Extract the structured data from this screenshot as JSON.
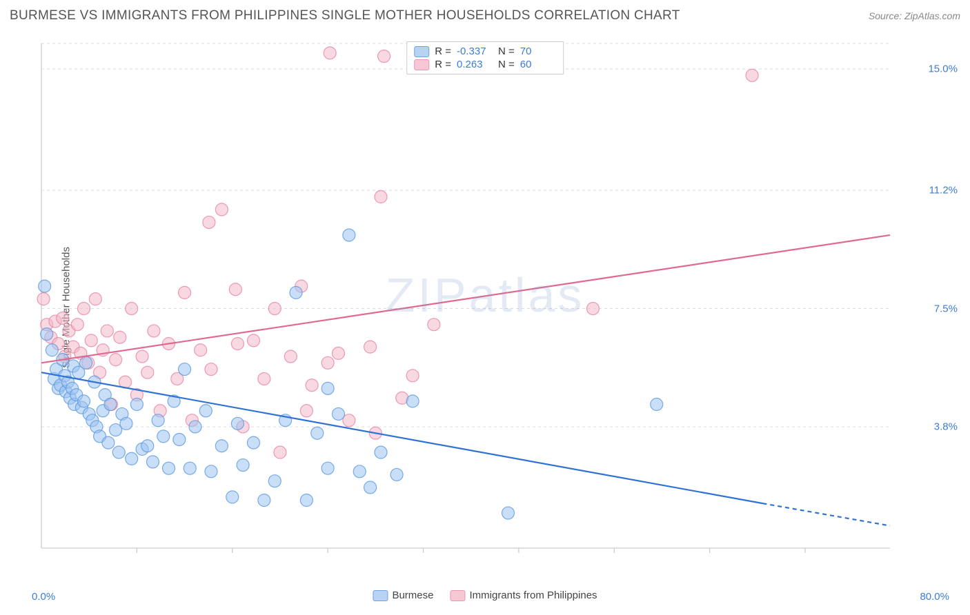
{
  "title": "BURMESE VS IMMIGRANTS FROM PHILIPPINES SINGLE MOTHER HOUSEHOLDS CORRELATION CHART",
  "source_label": "Source:",
  "source_name": "ZipAtlas.com",
  "y_axis_label": "Single Mother Households",
  "watermark": "ZIPatlas",
  "chart": {
    "type": "scatter-with-regression",
    "background_color": "#ffffff",
    "grid_color": "#dddddd",
    "grid_dash": "4,4",
    "axis_color": "#cccccc",
    "xlim": [
      0,
      80
    ],
    "ylim": [
      0,
      15.8
    ],
    "x_end_labels": {
      "min": "0.0%",
      "max": "80.0%"
    },
    "y_ticks": [
      3.8,
      7.5,
      11.2,
      15.0
    ],
    "y_tick_labels": [
      "3.8%",
      "7.5%",
      "11.2%",
      "15.0%"
    ],
    "x_minor_ticks": [
      9,
      18,
      27,
      36,
      45,
      54,
      63,
      72
    ],
    "x_label_color": "#3c7cd6",
    "y_label_color": "#3c7cd6",
    "marker_radius": 9,
    "marker_opacity": 0.55,
    "line_width": 2.2
  },
  "series": [
    {
      "name": "Burmese",
      "key": "burmese",
      "color_fill": "#9dc3f0",
      "color_stroke": "#5a98e0",
      "line_color": "#2f72d3",
      "swatch_fill": "#b7d2f3",
      "swatch_border": "#6ea3e3",
      "R": "-0.337",
      "N": "70",
      "regression": {
        "x1": 0,
        "y1": 5.5,
        "x2": 68,
        "y2": 1.4,
        "extend_x2": 80,
        "extend_y2": 0.7
      },
      "points": [
        [
          0.3,
          8.2
        ],
        [
          0.5,
          6.7
        ],
        [
          1.0,
          6.2
        ],
        [
          1.2,
          5.3
        ],
        [
          1.4,
          5.6
        ],
        [
          1.6,
          5.0
        ],
        [
          1.8,
          5.1
        ],
        [
          2.0,
          5.9
        ],
        [
          2.2,
          5.4
        ],
        [
          2.3,
          4.9
        ],
        [
          2.5,
          5.2
        ],
        [
          2.7,
          4.7
        ],
        [
          2.9,
          5.0
        ],
        [
          3.0,
          5.7
        ],
        [
          3.1,
          4.5
        ],
        [
          3.3,
          4.8
        ],
        [
          3.5,
          5.5
        ],
        [
          3.8,
          4.4
        ],
        [
          4.0,
          4.6
        ],
        [
          4.2,
          5.8
        ],
        [
          4.5,
          4.2
        ],
        [
          4.8,
          4.0
        ],
        [
          5.0,
          5.2
        ],
        [
          5.2,
          3.8
        ],
        [
          5.5,
          3.5
        ],
        [
          5.8,
          4.3
        ],
        [
          6.0,
          4.8
        ],
        [
          6.3,
          3.3
        ],
        [
          6.5,
          4.5
        ],
        [
          7.0,
          3.7
        ],
        [
          7.3,
          3.0
        ],
        [
          7.6,
          4.2
        ],
        [
          8.0,
          3.9
        ],
        [
          8.5,
          2.8
        ],
        [
          9.0,
          4.5
        ],
        [
          9.5,
          3.1
        ],
        [
          10.0,
          3.2
        ],
        [
          10.5,
          2.7
        ],
        [
          11.0,
          4.0
        ],
        [
          11.5,
          3.5
        ],
        [
          12.0,
          2.5
        ],
        [
          12.5,
          4.6
        ],
        [
          13.0,
          3.4
        ],
        [
          13.5,
          5.6
        ],
        [
          14.0,
          2.5
        ],
        [
          14.5,
          3.8
        ],
        [
          15.5,
          4.3
        ],
        [
          16.0,
          2.4
        ],
        [
          17.0,
          3.2
        ],
        [
          18.0,
          1.6
        ],
        [
          18.5,
          3.9
        ],
        [
          19.0,
          2.6
        ],
        [
          20.0,
          3.3
        ],
        [
          21.0,
          1.5
        ],
        [
          22.0,
          2.1
        ],
        [
          23.0,
          4.0
        ],
        [
          24.0,
          8.0
        ],
        [
          25.0,
          1.5
        ],
        [
          26.0,
          3.6
        ],
        [
          27.0,
          2.5
        ],
        [
          28.0,
          4.2
        ],
        [
          29.0,
          9.8
        ],
        [
          30.0,
          2.4
        ],
        [
          31.0,
          1.9
        ],
        [
          32.0,
          3.0
        ],
        [
          33.5,
          2.3
        ],
        [
          35.0,
          4.6
        ],
        [
          44.0,
          1.1
        ],
        [
          27.0,
          5.0
        ],
        [
          58.0,
          4.5
        ]
      ]
    },
    {
      "name": "Immigrants from Philippines",
      "key": "philippines",
      "color_fill": "#f3b8c8",
      "color_stroke": "#e983a4",
      "line_color": "#e06990",
      "swatch_fill": "#f6c8d6",
      "swatch_border": "#ea94b0",
      "R": "0.263",
      "N": "60",
      "regression": {
        "x1": 0,
        "y1": 5.8,
        "x2": 80,
        "y2": 9.8
      },
      "points": [
        [
          0.2,
          7.8
        ],
        [
          0.5,
          7.0
        ],
        [
          0.9,
          6.6
        ],
        [
          1.3,
          7.1
        ],
        [
          1.6,
          6.4
        ],
        [
          2.0,
          7.2
        ],
        [
          2.2,
          6.0
        ],
        [
          2.6,
          6.8
        ],
        [
          3.0,
          6.3
        ],
        [
          3.4,
          7.0
        ],
        [
          3.7,
          6.1
        ],
        [
          4.0,
          7.5
        ],
        [
          4.4,
          5.8
        ],
        [
          4.7,
          6.5
        ],
        [
          5.1,
          7.8
        ],
        [
          5.5,
          5.5
        ],
        [
          5.8,
          6.2
        ],
        [
          6.2,
          6.8
        ],
        [
          6.6,
          4.5
        ],
        [
          7.0,
          5.9
        ],
        [
          7.4,
          6.6
        ],
        [
          7.9,
          5.2
        ],
        [
          8.5,
          7.5
        ],
        [
          9.0,
          4.8
        ],
        [
          9.5,
          6.0
        ],
        [
          10.0,
          5.5
        ],
        [
          10.6,
          6.8
        ],
        [
          11.2,
          4.3
        ],
        [
          12.0,
          6.4
        ],
        [
          12.8,
          5.3
        ],
        [
          13.5,
          8.0
        ],
        [
          14.2,
          4.0
        ],
        [
          15.0,
          6.2
        ],
        [
          15.8,
          10.2
        ],
        [
          16.0,
          5.6
        ],
        [
          17.0,
          10.6
        ],
        [
          18.3,
          8.1
        ],
        [
          19.0,
          3.8
        ],
        [
          20.0,
          6.5
        ],
        [
          21.0,
          5.3
        ],
        [
          22.0,
          7.5
        ],
        [
          22.5,
          3.0
        ],
        [
          23.5,
          6.0
        ],
        [
          24.5,
          8.2
        ],
        [
          25.0,
          4.3
        ],
        [
          25.5,
          5.1
        ],
        [
          27.0,
          5.8
        ],
        [
          28.0,
          6.1
        ],
        [
          29.0,
          4.0
        ],
        [
          31.0,
          6.3
        ],
        [
          31.5,
          3.6
        ],
        [
          32.0,
          11.0
        ],
        [
          32.3,
          15.4
        ],
        [
          34.0,
          4.7
        ],
        [
          35.0,
          5.4
        ],
        [
          37.0,
          7.0
        ],
        [
          27.2,
          15.5
        ],
        [
          52.0,
          7.5
        ],
        [
          67.0,
          14.8
        ],
        [
          18.5,
          6.4
        ]
      ]
    }
  ],
  "stats_legend_labels": {
    "R": "R =",
    "N": "N ="
  },
  "bottom_legend": [
    "Burmese",
    "Immigrants from Philippines"
  ]
}
